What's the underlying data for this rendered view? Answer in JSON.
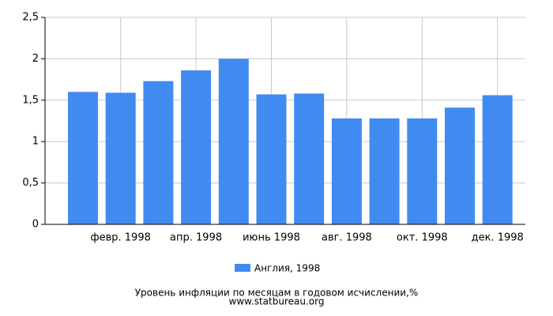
{
  "chart_data": {
    "type": "bar",
    "title": "Уровень инфляции по месяцам в годовом исчислении,%",
    "source": "www.statbureau.org",
    "categories": [
      null,
      "февр. 1998",
      null,
      "апр. 1998",
      null,
      "июнь 1998",
      null,
      "авг. 1998",
      null,
      "окт. 1998",
      null,
      "дек. 1998"
    ],
    "series": [
      {
        "name": "Англия, 1998",
        "color": "#418bf0",
        "values": [
          1.6,
          1.59,
          1.73,
          1.86,
          2.0,
          1.57,
          1.58,
          1.28,
          1.28,
          1.28,
          1.41,
          1.56
        ]
      }
    ],
    "ylim": [
      0,
      2.5
    ],
    "yticks": [
      0,
      {
        "value": 0.5,
        "label": "0,5"
      },
      1,
      {
        "value": 1.5,
        "label": "1,5"
      },
      2,
      {
        "value": 2.5,
        "label": "2,5"
      }
    ],
    "grid": true
  }
}
